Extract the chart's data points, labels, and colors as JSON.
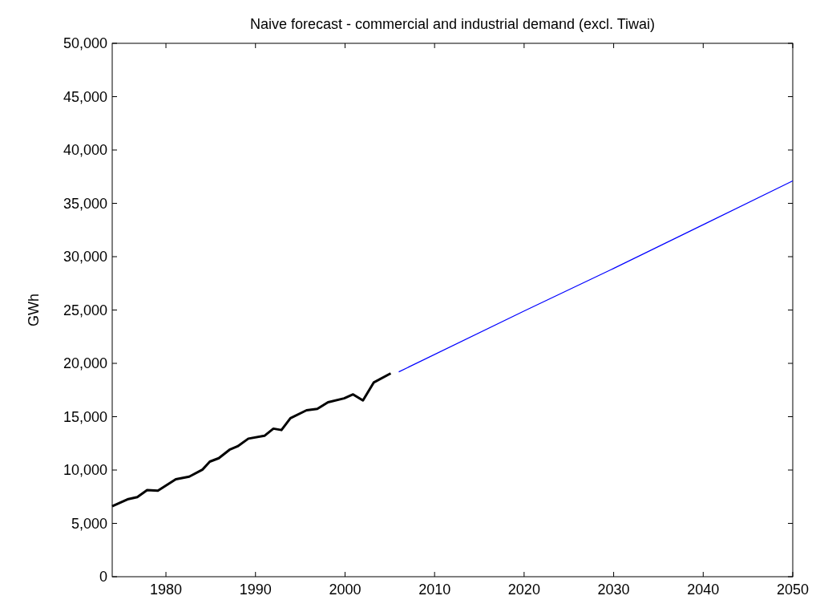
{
  "chart_data": {
    "type": "line",
    "title": "Naive forecast - commercial and industrial demand (excl. Tiwai)",
    "ylabel": "GWh",
    "xlim": [
      1974,
      2050
    ],
    "xticks": [
      1980,
      1990,
      2000,
      2010,
      2020,
      2030,
      2040,
      2050
    ],
    "ylim": [
      0,
      50000
    ],
    "yticks": [
      {
        "value": 0,
        "label": "0"
      },
      {
        "value": 5000,
        "label": "5,000"
      },
      {
        "value": 10000,
        "label": "10,000"
      },
      {
        "value": 15000,
        "label": "15,000"
      },
      {
        "value": 20000,
        "label": "20,000"
      },
      {
        "value": 25000,
        "label": "25,000"
      },
      {
        "value": 30000,
        "label": "30,000"
      },
      {
        "value": 35000,
        "label": "35,000"
      },
      {
        "value": 40000,
        "label": "40,000"
      },
      {
        "value": 45000,
        "label": "45,000"
      },
      {
        "value": 50000,
        "label": "50,000"
      }
    ],
    "series": [
      {
        "color": "#000000",
        "x": [
          1974.0,
          1975.8,
          1976.8,
          1977.9,
          1979.1,
          1981.1,
          1982.6,
          1984.1,
          1984.9,
          1985.9,
          1987.1,
          1988.0,
          1989.2,
          1991.0,
          1992.0,
          1992.9,
          1993.9,
          1995.7,
          1996.9,
          1998.1,
          1999.9,
          2000.9,
          2002.0,
          2003.2,
          2005.1
        ],
        "values": [
          6600,
          7280,
          7460,
          8120,
          8070,
          9140,
          9380,
          10050,
          10790,
          11110,
          11900,
          12220,
          12940,
          13210,
          13880,
          13750,
          14860,
          15600,
          15730,
          16350,
          16720,
          17090,
          16520,
          18200,
          19060
        ]
      },
      {
        "color": "#0000ff",
        "x": [
          2006,
          2020,
          2030,
          2040,
          2050
        ],
        "values": [
          19200,
          24900,
          28900,
          33000,
          37100
        ]
      }
    ]
  }
}
